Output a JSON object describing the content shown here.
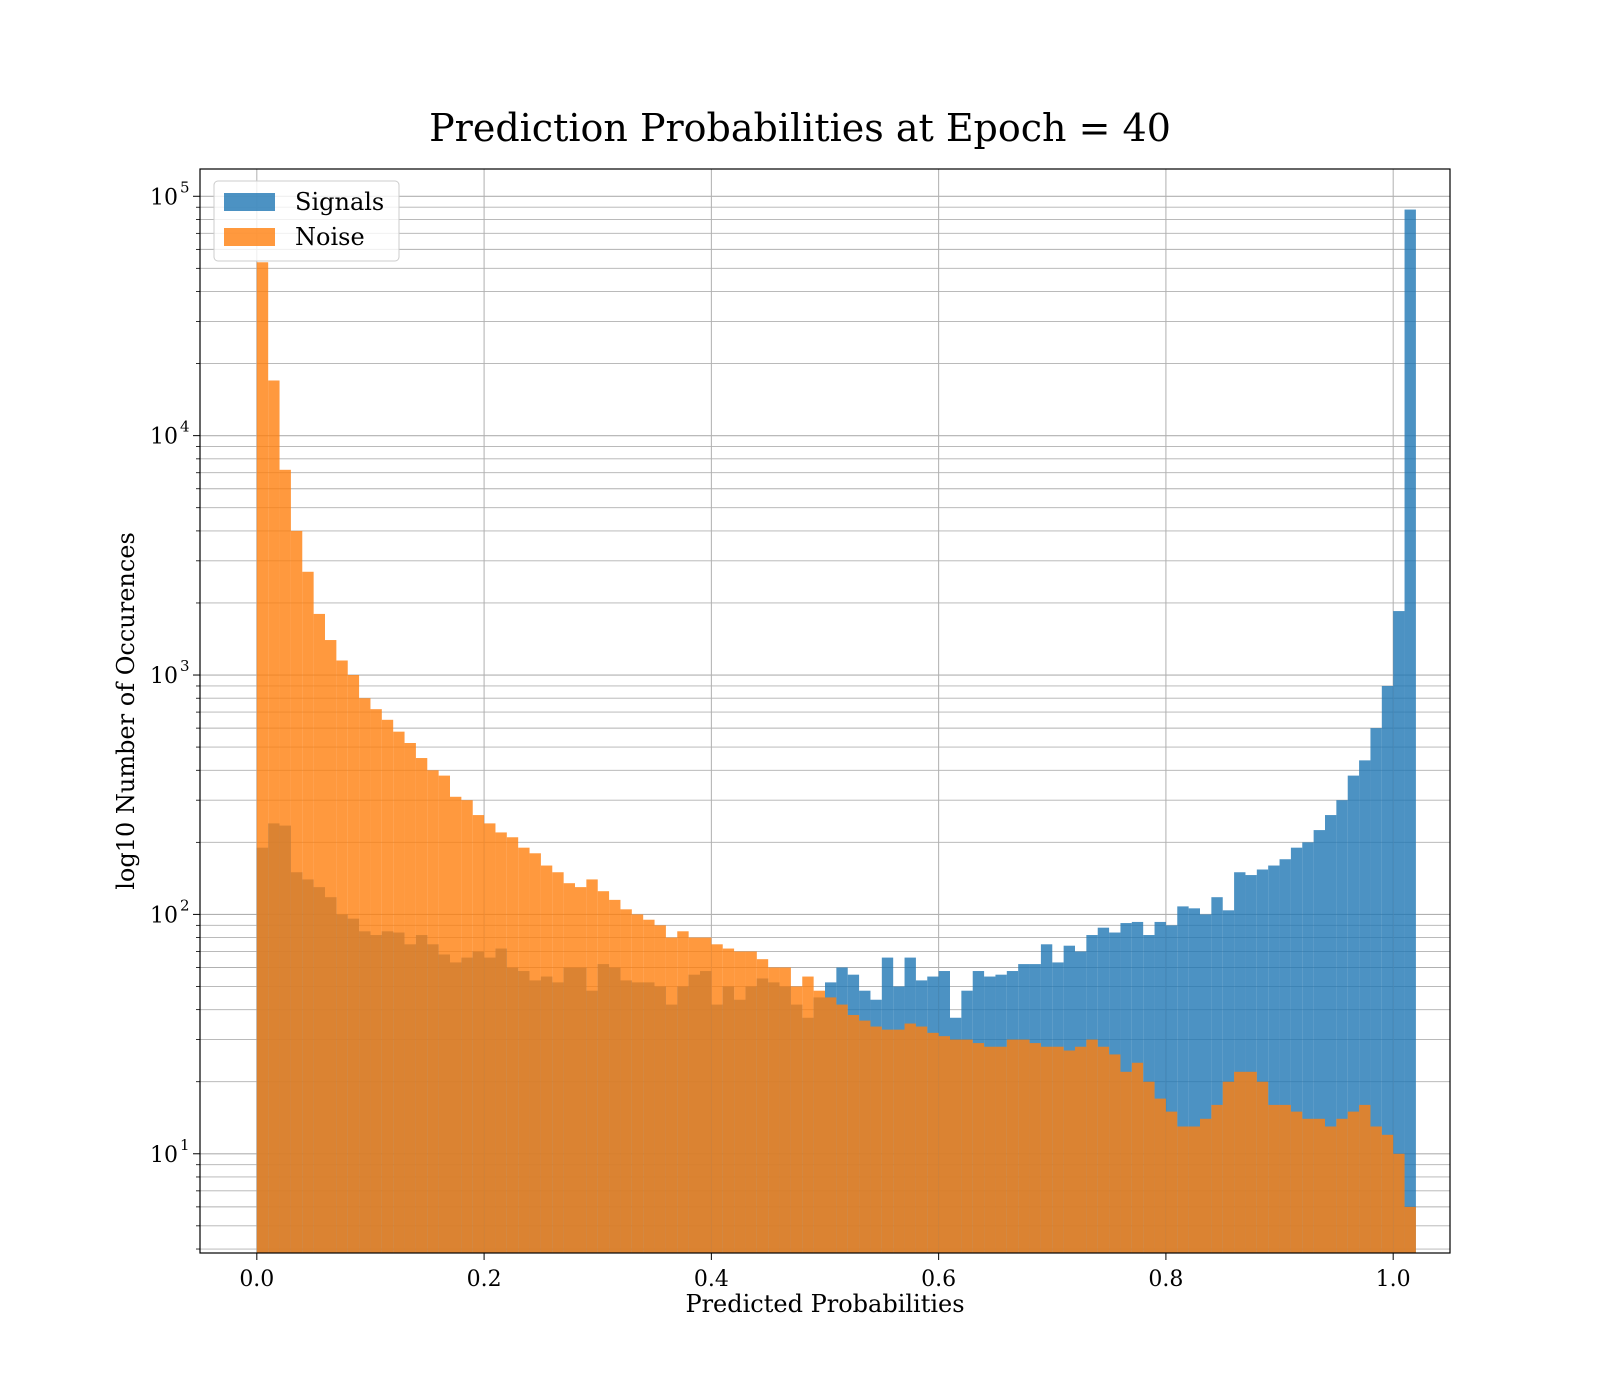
{
  "chart_data": {
    "type": "bar",
    "subtype": "histogram",
    "title": "Prediction Probabilities at Epoch = 40",
    "xlabel": "Predicted Probabilities",
    "ylabel": "log10 Number of Occurences",
    "xlim": [
      -0.05,
      1.05
    ],
    "ylim": [
      3.85,
      130000
    ],
    "yscale": "log",
    "grid": true,
    "legend_position": "top-left",
    "bin_start": 0.0,
    "bin_width": 0.01,
    "x_ticks": [
      "0.0",
      "0.2",
      "0.4",
      "0.6",
      "0.8",
      "1.0"
    ],
    "x_tick_values": [
      0.0,
      0.2,
      0.4,
      0.6,
      0.8,
      1.0
    ],
    "y_ticks": [
      {
        "value": 10,
        "base": "10",
        "exp": "1"
      },
      {
        "value": 100,
        "base": "10",
        "exp": "2"
      },
      {
        "value": 1000,
        "base": "10",
        "exp": "3"
      },
      {
        "value": 10000,
        "base": "10",
        "exp": "4"
      },
      {
        "value": 100000,
        "base": "10",
        "exp": "5"
      }
    ],
    "series": [
      {
        "name": "Signals",
        "color": "#1f77b4",
        "alpha": 0.8,
        "values": [
          190,
          240,
          235,
          150,
          140,
          130,
          118,
          100,
          96,
          85,
          82,
          85,
          84,
          75,
          82,
          75,
          68,
          63,
          66,
          70,
          66,
          72,
          60,
          58,
          53,
          55,
          52,
          60,
          60,
          48,
          62,
          60,
          53,
          52,
          52,
          50,
          42,
          50,
          56,
          58,
          42,
          50,
          44,
          50,
          54,
          52,
          50,
          42,
          37,
          45,
          52,
          60,
          56,
          48,
          44,
          66,
          50,
          66,
          53,
          55,
          58,
          37,
          48,
          58,
          55,
          56,
          58,
          62,
          62,
          75,
          63,
          74,
          70,
          82,
          88,
          84,
          92,
          93,
          82,
          93,
          90,
          108,
          106,
          100,
          118,
          104,
          150,
          146,
          154,
          160,
          170,
          190,
          200,
          225,
          260,
          300,
          380,
          440,
          600,
          900,
          1850,
          88000
        ]
      },
      {
        "name": "Noise",
        "color": "#ff7f0e",
        "alpha": 0.8,
        "values": [
          53000,
          17000,
          7200,
          4000,
          2700,
          1800,
          1400,
          1150,
          1000,
          800,
          720,
          650,
          580,
          520,
          450,
          400,
          380,
          310,
          300,
          260,
          240,
          220,
          210,
          190,
          180,
          160,
          150,
          135,
          130,
          140,
          125,
          115,
          105,
          100,
          95,
          90,
          80,
          85,
          80,
          80,
          75,
          72,
          70,
          70,
          65,
          60,
          60,
          50,
          55,
          48,
          45,
          42,
          38,
          36,
          34,
          33,
          33,
          35,
          34,
          32,
          31,
          30,
          30,
          29,
          28,
          28,
          30,
          30,
          29,
          28,
          28,
          27,
          28,
          30,
          28,
          26,
          22,
          24,
          20,
          17,
          15,
          13,
          13,
          14,
          16,
          20,
          22,
          22,
          20,
          16,
          16,
          15,
          14,
          14,
          13,
          14,
          15,
          16,
          13,
          12,
          10,
          6
        ]
      }
    ]
  }
}
